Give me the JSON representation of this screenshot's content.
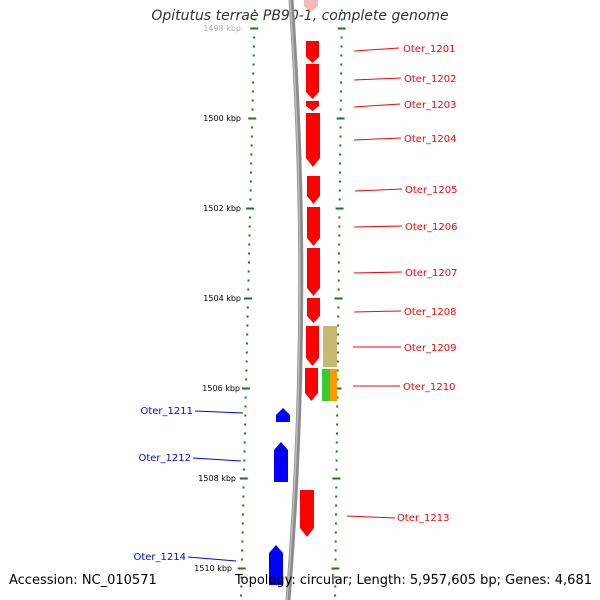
{
  "title": "Opitutus terrae PB90-1, complete genome",
  "accession": "Accession: NC_010571",
  "summary": "Topology: circular; Length: 5,957,605 bp; Genes: 4,681",
  "scale_labels": [
    "1498 kbp",
    "1500 kbp",
    "1502 kbp",
    "1504 kbp",
    "1506 kbp",
    "1508 kbp",
    "1510 kbp"
  ],
  "genes_forward": [
    "Oter_1201",
    "Oter_1202",
    "Oter_1203",
    "Oter_1204",
    "Oter_1205",
    "Oter_1206",
    "Oter_1207",
    "Oter_1208",
    "Oter_1209",
    "Oter_1210",
    "Oter_1213"
  ],
  "genes_reverse": [
    "Oter_1211",
    "Oter_1212",
    "Oter_1214"
  ],
  "colors": {
    "forward": "#ff0000",
    "reverse": "#0000ff",
    "scale": "#1a7a1a",
    "backbone": "#8c8c8c",
    "domain_olive": "#c8b870",
    "domain_green": "#33cc33",
    "domain_orange": "#ff9900"
  }
}
